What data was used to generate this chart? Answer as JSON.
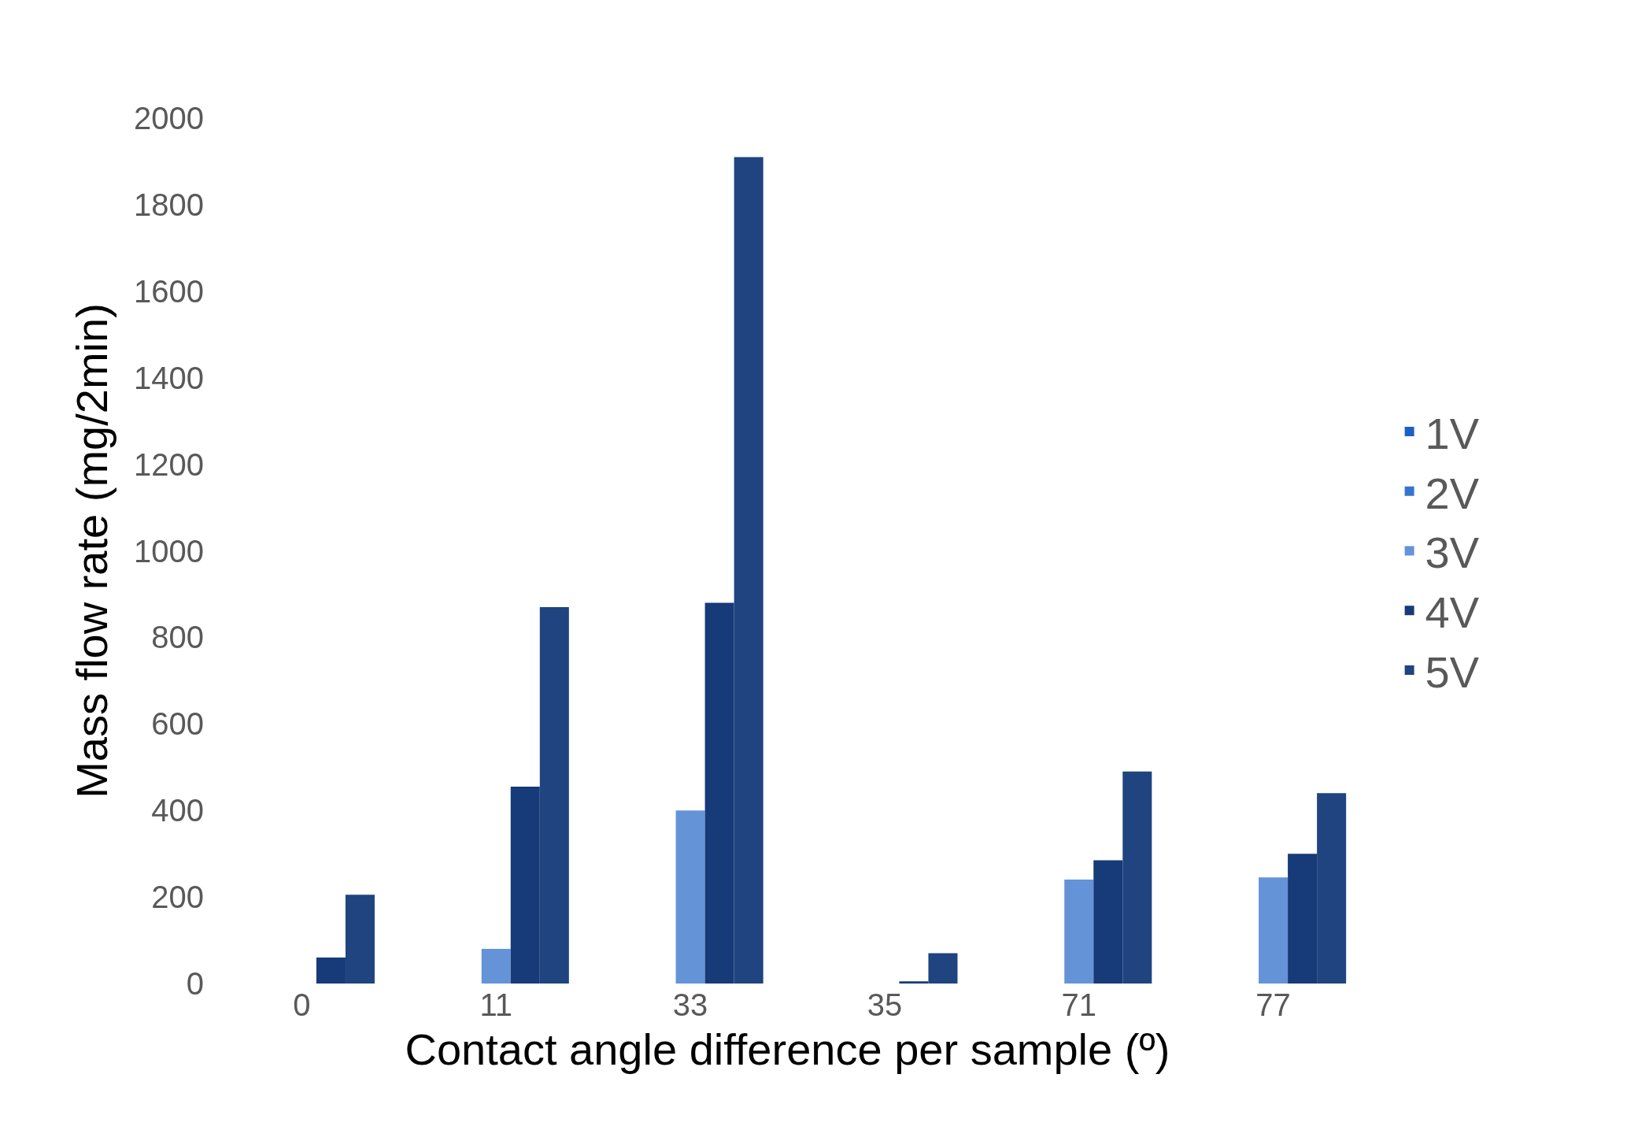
{
  "chart_data": {
    "type": "bar",
    "xlabel": "Contact angle difference per sample (º)",
    "ylabel": "Mass flow rate (mg/2min)",
    "categories": [
      "0",
      "11",
      "33",
      "35",
      "71",
      "77"
    ],
    "series": [
      {
        "name": "1V",
        "color": "#1e5fc6",
        "values": [
          0,
          0,
          0,
          0,
          0,
          0
        ]
      },
      {
        "name": "2V",
        "color": "#3575d0",
        "values": [
          0,
          0,
          0,
          0,
          0,
          0
        ]
      },
      {
        "name": "3V",
        "color": "#6593d8",
        "values": [
          0,
          80,
          400,
          0,
          240,
          245
        ]
      },
      {
        "name": "4V",
        "color": "#173a78",
        "values": [
          60,
          455,
          880,
          5,
          285,
          300
        ]
      },
      {
        "name": "5V",
        "color": "#1f447f",
        "values": [
          205,
          870,
          1910,
          70,
          490,
          440
        ]
      }
    ],
    "ylim": [
      0,
      2000
    ],
    "yticks": [
      0,
      200,
      400,
      600,
      800,
      1000,
      1200,
      1400,
      1600,
      1800,
      2000
    ],
    "legend": "right"
  }
}
